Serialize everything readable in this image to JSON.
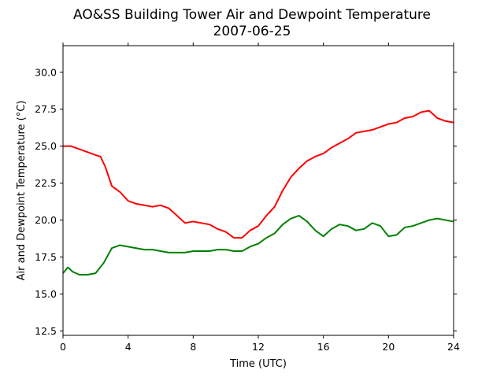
{
  "chart_data": {
    "type": "line",
    "title": "AO&SS Building Tower Air and Dewpoint Temperature",
    "subtitle": "2007-06-25",
    "xlabel": "Time (UTC)",
    "ylabel": "Air and Dewpoint Temperature (°C)",
    "xlim": [
      0,
      24
    ],
    "ylim": [
      12.2,
      31.8
    ],
    "xticks": [
      0,
      4,
      8,
      12,
      16,
      20,
      24
    ],
    "yticks": [
      12.5,
      15.0,
      17.5,
      20.0,
      22.5,
      25.0,
      27.5,
      30.0
    ],
    "ytick_labels": [
      "12.5",
      "15.0",
      "17.5",
      "20.0",
      "22.5",
      "25.0",
      "27.5",
      "30.0"
    ],
    "grid": false,
    "legend": "none",
    "series": [
      {
        "color": "#ff0000",
        "x": [
          0,
          0.5,
          1,
          1.5,
          2,
          2.3,
          2.6,
          3,
          3.5,
          4,
          4.5,
          5,
          5.5,
          6,
          6.5,
          7,
          7.5,
          8,
          8.5,
          9,
          9.5,
          10,
          10.5,
          11,
          11.5,
          12,
          12.5,
          13,
          13.5,
          14,
          14.5,
          15,
          15.5,
          16,
          16.5,
          17,
          17.5,
          18,
          18.5,
          19,
          19.5,
          20,
          20.5,
          21,
          21.5,
          22,
          22.5,
          23,
          23.5,
          24
        ],
        "y": [
          25.0,
          25.0,
          24.8,
          24.6,
          24.4,
          24.3,
          23.6,
          22.3,
          21.9,
          21.3,
          21.1,
          21.0,
          20.9,
          21.0,
          20.8,
          20.3,
          19.8,
          19.9,
          19.8,
          19.7,
          19.4,
          19.2,
          18.8,
          18.8,
          19.3,
          19.6,
          20.3,
          20.9,
          22.0,
          22.9,
          23.5,
          24.0,
          24.3,
          24.5,
          24.9,
          25.2,
          25.5,
          25.9,
          26.0,
          26.1,
          26.3,
          26.5,
          26.6,
          26.9,
          27.0,
          27.3,
          27.4,
          26.9,
          26.7,
          26.6
        ]
      },
      {
        "color": "#008000",
        "x": [
          0,
          0.3,
          0.6,
          1,
          1.5,
          2,
          2.5,
          3,
          3.5,
          4,
          4.5,
          5,
          5.5,
          6,
          6.5,
          7,
          7.5,
          8,
          8.5,
          9,
          9.5,
          10,
          10.5,
          11,
          11.5,
          12,
          12.5,
          13,
          13.5,
          14,
          14.5,
          15,
          15.5,
          16,
          16.5,
          17,
          17.5,
          18,
          18.5,
          19,
          19.5,
          20,
          20.5,
          21,
          21.5,
          22,
          22.5,
          23,
          23.5,
          24
        ],
        "y": [
          16.4,
          16.8,
          16.5,
          16.3,
          16.3,
          16.4,
          17.1,
          18.1,
          18.3,
          18.2,
          18.1,
          18.0,
          18.0,
          17.9,
          17.8,
          17.8,
          17.8,
          17.9,
          17.9,
          17.9,
          18.0,
          18.0,
          17.9,
          17.9,
          18.2,
          18.4,
          18.8,
          19.1,
          19.7,
          20.1,
          20.3,
          19.9,
          19.3,
          18.9,
          19.4,
          19.7,
          19.6,
          19.3,
          19.4,
          19.8,
          19.6,
          18.9,
          19.0,
          19.5,
          19.6,
          19.8,
          20.0,
          20.1,
          20.0,
          19.9
        ]
      }
    ]
  }
}
